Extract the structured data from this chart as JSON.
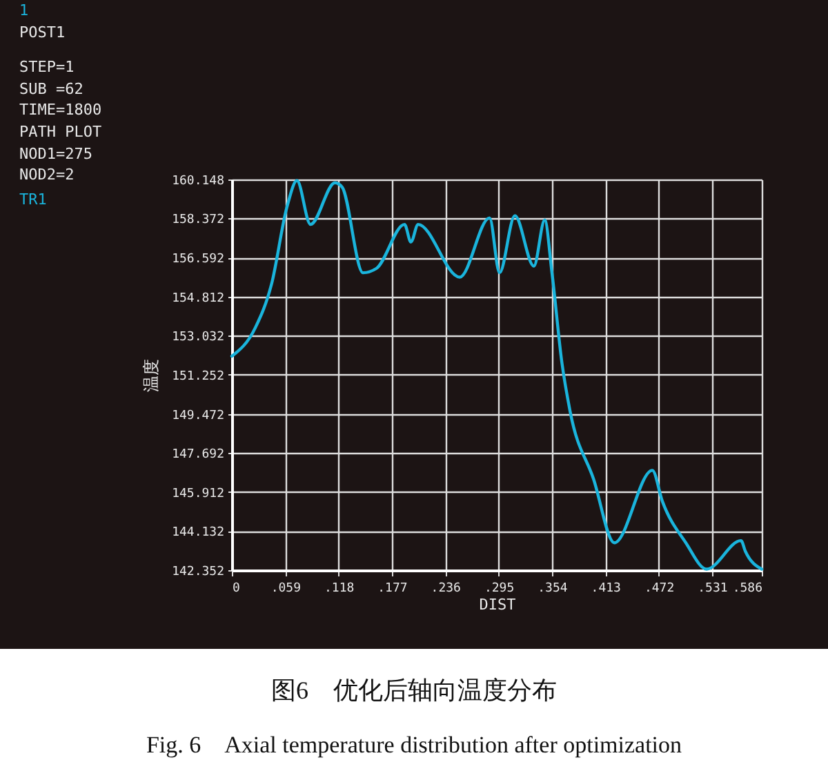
{
  "chart_data": {
    "type": "line",
    "title": "图6　优化后轴向温度分布",
    "subtitle": "Fig. 6　Axial temperature distribution after optimization",
    "xlabel": "DIST",
    "ylabel": "温度",
    "annotations": [
      "1",
      "POST1",
      "STEP=1",
      "SUB =62",
      "TIME=1800",
      "PATH PLOT",
      "NOD1=275",
      "NOD2=2"
    ],
    "x": [
      0,
      0.026,
      0.044,
      0.061,
      0.072,
      0.087,
      0.114,
      0.122,
      0.145,
      0.16,
      0.191,
      0.198,
      0.206,
      0.252,
      0.285,
      0.296,
      0.313,
      0.334,
      0.346,
      0.354,
      0.365,
      0.374,
      0.4,
      0.423,
      0.465,
      0.476,
      0.502,
      0.525,
      0.563,
      0.568,
      0.586
    ],
    "series": [
      {
        "name": "TR1",
        "color": "#1ab4dc",
        "values": [
          152.1,
          153.4,
          155.4,
          158.9,
          160.1,
          158.1,
          160.0,
          159.8,
          155.9,
          156.1,
          158.1,
          157.3,
          158.1,
          155.7,
          158.4,
          155.9,
          158.5,
          156.2,
          158.3,
          155.9,
          151.8,
          149.6,
          146.5,
          143.6,
          146.9,
          145.5,
          143.6,
          142.4,
          143.7,
          143.2,
          142.4
        ]
      }
    ],
    "xlim": [
      0,
      0.586
    ],
    "ylim": [
      142.352,
      160.148
    ],
    "xticks": [
      0,
      {
        "value": 0.059,
        "label": ".059"
      },
      {
        "value": 0.118,
        "label": ".118"
      },
      {
        "value": 0.177,
        "label": ".177"
      },
      {
        "value": 0.236,
        "label": ".236"
      },
      {
        "value": 0.295,
        "label": ".295"
      },
      {
        "value": 0.354,
        "label": ".354"
      },
      {
        "value": 0.413,
        "label": ".413"
      },
      {
        "value": 0.472,
        "label": ".472"
      },
      {
        "value": 0.531,
        "label": ".531"
      },
      {
        "value": 0.586,
        "label": ".586"
      }
    ],
    "yticks": [
      142.352,
      144.132,
      145.912,
      147.692,
      149.472,
      151.252,
      153.032,
      154.812,
      156.592,
      158.372,
      160.148
    ],
    "grid": true
  }
}
